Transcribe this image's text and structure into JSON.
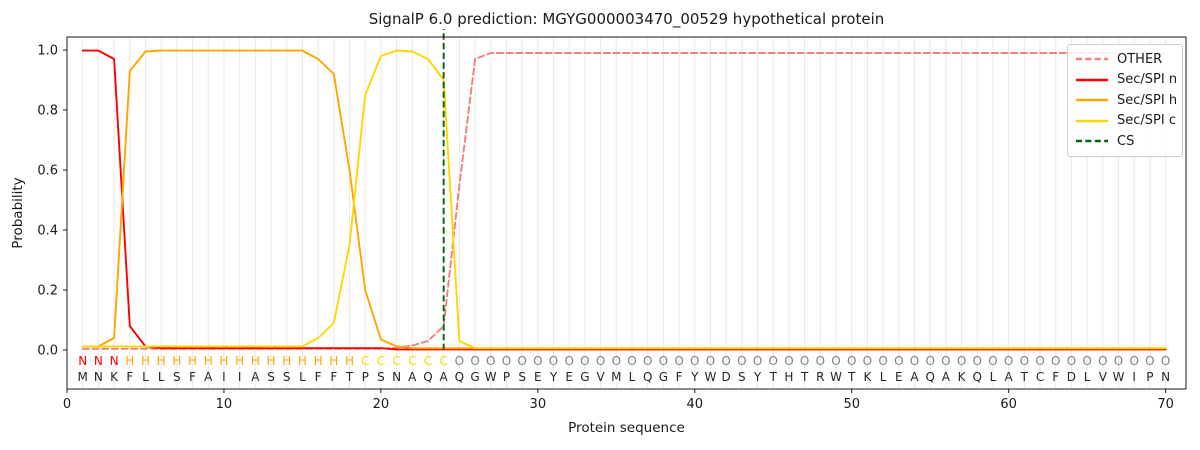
{
  "title": "SignalP 6.0 prediction: MGYG000003470_00529 hypothetical protein",
  "chart_data": {
    "type": "line",
    "title": "SignalP 6.0 prediction: MGYG000003470_00529 hypothetical protein",
    "xlabel": "Protein sequence",
    "ylabel": "Probability",
    "x_start": 1,
    "x_ticks": [
      0,
      10,
      20,
      30,
      40,
      50,
      60,
      70
    ],
    "y_ticks": [
      0.0,
      0.2,
      0.4,
      0.6,
      0.8,
      1.0
    ],
    "xlim": [
      0,
      71.3
    ],
    "ylim": [
      -0.14,
      1.04
    ],
    "grid": {
      "vertical_per_residue": true,
      "color": "#e9e9e9",
      "horizontal": false
    },
    "legend_position": "upper right",
    "series": [
      {
        "name": "OTHER",
        "color": "#f08080",
        "style": "dashed",
        "values": [
          0.004,
          0.004,
          0.004,
          0.004,
          0.004,
          0.004,
          0.004,
          0.004,
          0.004,
          0.004,
          0.004,
          0.004,
          0.004,
          0.004,
          0.004,
          0.004,
          0.004,
          0.004,
          0.004,
          0.004,
          0.008,
          0.015,
          0.03,
          0.08,
          0.55,
          0.97,
          0.99,
          0.99,
          0.99,
          0.99,
          0.99,
          0.99,
          0.99,
          0.99,
          0.99,
          0.99,
          0.99,
          0.99,
          0.99,
          0.99,
          0.99,
          0.99,
          0.99,
          0.99,
          0.99,
          0.99,
          0.99,
          0.99,
          0.99,
          0.99,
          0.99,
          0.99,
          0.99,
          0.99,
          0.99,
          0.99,
          0.99,
          0.99,
          0.99,
          0.99,
          0.99,
          0.99,
          0.99,
          0.99,
          0.99,
          0.99,
          0.99,
          0.99,
          0.99,
          0.99
        ]
      },
      {
        "name": "Sec/SPI n",
        "color": "#ff0000",
        "style": "solid",
        "values": [
          0.998,
          0.998,
          0.97,
          0.08,
          0.012,
          0.006,
          0.006,
          0.006,
          0.006,
          0.006,
          0.006,
          0.006,
          0.006,
          0.006,
          0.006,
          0.006,
          0.006,
          0.006,
          0.006,
          0.006,
          0.002,
          0.002,
          0.002,
          0.002,
          0.002,
          0.002,
          0.002,
          0.002,
          0.002,
          0.002,
          0.002,
          0.002,
          0.002,
          0.002,
          0.002,
          0.002,
          0.002,
          0.002,
          0.002,
          0.002,
          0.002,
          0.002,
          0.002,
          0.002,
          0.002,
          0.002,
          0.002,
          0.002,
          0.002,
          0.002,
          0.002,
          0.002,
          0.002,
          0.002,
          0.002,
          0.002,
          0.002,
          0.002,
          0.002,
          0.002,
          0.002,
          0.002,
          0.002,
          0.002,
          0.002,
          0.002,
          0.002,
          0.002,
          0.002,
          0.002
        ]
      },
      {
        "name": "Sec/SPI h",
        "color": "#ffa500",
        "style": "solid",
        "values": [
          0.012,
          0.012,
          0.04,
          0.93,
          0.995,
          0.998,
          0.998,
          0.998,
          0.998,
          0.998,
          0.998,
          0.998,
          0.998,
          0.998,
          0.998,
          0.97,
          0.92,
          0.6,
          0.2,
          0.035,
          0.012,
          0.006,
          0.006,
          0.006,
          0.006,
          0.006,
          0.006,
          0.006,
          0.006,
          0.006,
          0.006,
          0.006,
          0.006,
          0.006,
          0.006,
          0.006,
          0.006,
          0.006,
          0.006,
          0.006,
          0.006,
          0.006,
          0.006,
          0.006,
          0.006,
          0.006,
          0.006,
          0.006,
          0.006,
          0.006,
          0.006,
          0.006,
          0.006,
          0.006,
          0.006,
          0.006,
          0.006,
          0.006,
          0.006,
          0.006,
          0.006,
          0.006,
          0.006,
          0.006,
          0.006,
          0.006,
          0.006,
          0.006,
          0.006,
          0.006
        ]
      },
      {
        "name": "Sec/SPI c",
        "color": "#ffd700",
        "style": "solid",
        "values": [
          0.012,
          0.012,
          0.012,
          0.012,
          0.012,
          0.012,
          0.012,
          0.012,
          0.012,
          0.012,
          0.012,
          0.012,
          0.012,
          0.012,
          0.012,
          0.04,
          0.09,
          0.35,
          0.85,
          0.98,
          0.998,
          0.995,
          0.97,
          0.9,
          0.03,
          0.006,
          0.006,
          0.006,
          0.006,
          0.006,
          0.006,
          0.006,
          0.006,
          0.006,
          0.006,
          0.006,
          0.006,
          0.006,
          0.006,
          0.006,
          0.006,
          0.006,
          0.006,
          0.006,
          0.006,
          0.006,
          0.006,
          0.006,
          0.006,
          0.006,
          0.006,
          0.006,
          0.006,
          0.006,
          0.006,
          0.006,
          0.006,
          0.006,
          0.006,
          0.006,
          0.006,
          0.006,
          0.006,
          0.006,
          0.006,
          0.006,
          0.006,
          0.006,
          0.006,
          0.006
        ]
      }
    ],
    "cs_marker": {
      "name": "CS",
      "x": 24,
      "color": "#006400",
      "style": "dashed"
    },
    "sequence": "MNKFLLSFAIIASSLFFTPSNAQAQGWPSEYEGVMLQGFYWDSYTHTRWTKLEAQAKQLATCFDLVWIPN",
    "residue_labels": "NNNHHHHHHHHHHHHHHHCCCCCCOOOOOOOOOOOOOOOOOOOOOOOOOOOOOOOOOOOOOOOOOOOOOO",
    "label_colors": {
      "N": "#ff0000",
      "H": "#ffa500",
      "C": "#ffd700",
      "O": "#808080"
    },
    "sequence_color": "#262626"
  },
  "legend": {
    "entries": [
      {
        "label": "OTHER",
        "color": "#f08080",
        "dashed": true
      },
      {
        "label": "Sec/SPI n",
        "color": "#ff0000",
        "dashed": false
      },
      {
        "label": "Sec/SPI h",
        "color": "#ffa500",
        "dashed": false
      },
      {
        "label": "Sec/SPI c",
        "color": "#ffd700",
        "dashed": false
      },
      {
        "label": "CS",
        "color": "#006400",
        "dashed": true
      }
    ]
  }
}
